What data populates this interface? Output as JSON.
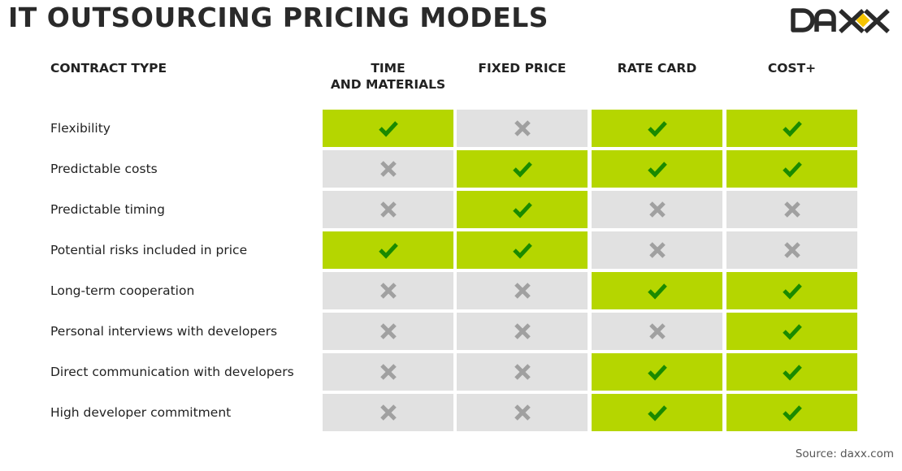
{
  "title": "IT OUTSOURCING PRICING MODELS",
  "logo": {
    "text": "DAXX",
    "accent_color": "#f5c400"
  },
  "header": {
    "contract_type": "CONTRACT TYPE",
    "columns": [
      {
        "line1": "TIME",
        "line2": "AND MATERIALS"
      },
      {
        "line1": "FIXED PRICE",
        "line2": ""
      },
      {
        "line1": "RATE CARD",
        "line2": ""
      },
      {
        "line1": "COST+",
        "line2": ""
      }
    ]
  },
  "colors": {
    "yes_bg": "#b5d600",
    "no_bg": "#e1e1e1",
    "check": "#1a8a00",
    "cross": "#a0a0a0"
  },
  "rows": [
    {
      "label": "Flexibility",
      "values": [
        true,
        false,
        true,
        true
      ]
    },
    {
      "label": "Predictable costs",
      "values": [
        false,
        true,
        true,
        true
      ]
    },
    {
      "label": "Predictable timing",
      "values": [
        false,
        true,
        false,
        false
      ]
    },
    {
      "label": "Potential risks included in price",
      "values": [
        true,
        true,
        false,
        false
      ]
    },
    {
      "label": "Long-term cooperation",
      "values": [
        false,
        false,
        true,
        true
      ]
    },
    {
      "label": "Personal interviews with developers",
      "values": [
        false,
        false,
        false,
        true
      ]
    },
    {
      "label": "Direct communication with developers",
      "values": [
        false,
        false,
        true,
        true
      ]
    },
    {
      "label": "High developer commitment",
      "values": [
        false,
        false,
        true,
        true
      ]
    }
  ],
  "source": "Source: daxx.com"
}
